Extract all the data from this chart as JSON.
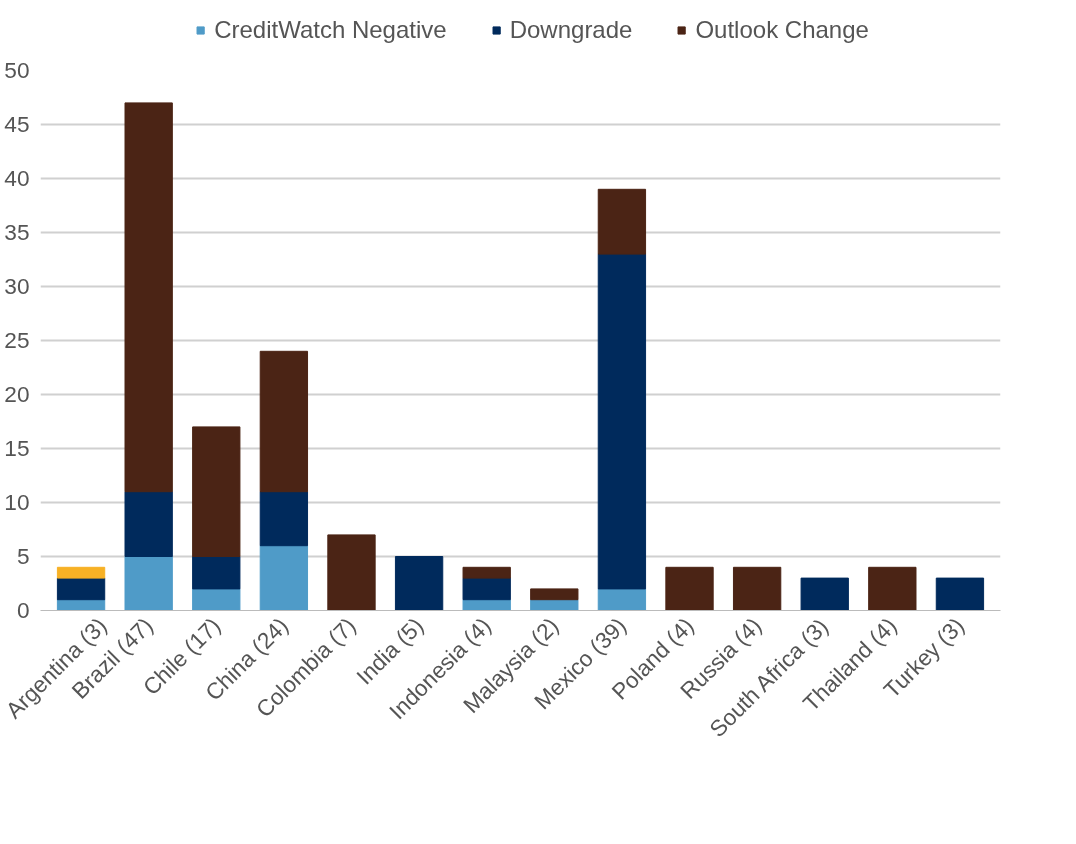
{
  "chart_data": {
    "type": "bar",
    "stacked": true,
    "categories": [
      "Argentina (3)",
      "Brazil (47)",
      "Chile (17)",
      "China (24)",
      "Colombia (7)",
      "India (5)",
      "Indonesia (4)",
      "Malaysia (2)",
      "Mexico (39)",
      "Poland (4)",
      "Russia (4)",
      "South Africa (3)",
      "Thailand (4)",
      "Turkey (3)"
    ],
    "series": [
      {
        "name": "CreditWatch Negative",
        "color": "#4f9bc8",
        "values": [
          1,
          5,
          2,
          6,
          null,
          null,
          1,
          1,
          2,
          null,
          null,
          null,
          null,
          null
        ]
      },
      {
        "name": "Downgrade",
        "color": "#002a5c",
        "values": [
          2,
          6,
          3,
          5,
          null,
          5,
          2,
          null,
          31,
          null,
          null,
          3,
          null,
          3
        ]
      },
      {
        "name": "Outlook Change",
        "color": "#4b2415",
        "values": [
          null,
          36,
          12,
          13,
          7,
          null,
          1,
          1,
          6,
          4,
          4,
          null,
          4,
          null
        ]
      },
      {
        "color": "#f7b125",
        "values": [
          1,
          null,
          null,
          null,
          null,
          null,
          null,
          null,
          null,
          null,
          null,
          null,
          null,
          null
        ]
      }
    ],
    "ylim": [
      0,
      50
    ],
    "yticks": [
      0,
      5,
      10,
      15,
      20,
      25,
      30,
      35,
      40,
      45,
      50
    ],
    "grid": "y",
    "legend": "top"
  }
}
